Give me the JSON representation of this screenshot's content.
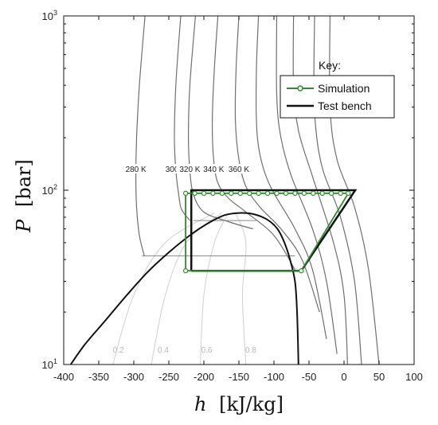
{
  "chart_data": {
    "type": "line",
    "xlabel_var": "h",
    "xlabel_unit": "[kJ/kg]",
    "ylabel_var": "P",
    "ylabel_unit": "[bar]",
    "xlim": [
      -400,
      100
    ],
    "ylim": [
      10,
      1000
    ],
    "yscale": "log",
    "x_ticks": [
      -400,
      -350,
      -300,
      -250,
      -200,
      -150,
      -100,
      -50,
      0,
      50,
      100
    ],
    "y_ticks": [
      {
        "value": 10,
        "base": "10",
        "exp": "1"
      },
      {
        "value": 100,
        "base": "10",
        "exp": "2"
      },
      {
        "value": 1000,
        "base": "10",
        "exp": "3"
      }
    ],
    "grid": false,
    "legend": {
      "title": "Key:",
      "position": "top-right",
      "items": [
        "Simulation",
        "Test bench"
      ]
    },
    "isotherms": [
      {
        "label": "280 K",
        "points": [
          [
            -285,
            42
          ],
          [
            -292,
            55
          ],
          [
            -296,
            80
          ],
          [
            -297,
            120
          ],
          [
            -296,
            200
          ],
          [
            -292,
            400
          ],
          [
            -284,
            1000
          ]
        ]
      },
      {
        "label": "300 K",
        "points": [
          [
            -220,
            67
          ],
          [
            -232,
            78
          ],
          [
            -236,
            95
          ],
          [
            -240,
            130
          ],
          [
            -242,
            200
          ],
          [
            -240,
            400
          ],
          [
            -233,
            1000
          ]
        ]
      },
      {
        "label": "320 K",
        "points": [
          [
            -130,
            60
          ],
          [
            -165,
            66
          ],
          [
            -200,
            75
          ],
          [
            -215,
            95
          ],
          [
            -220,
            130
          ],
          [
            -222,
            200
          ],
          [
            -220,
            400
          ],
          [
            -212,
            1000
          ]
        ]
      },
      {
        "label": "340 K",
        "points": [
          [
            -70,
            35
          ],
          [
            -100,
            55
          ],
          [
            -140,
            75
          ],
          [
            -165,
            90
          ],
          [
            -180,
            110
          ],
          [
            -186,
            150
          ],
          [
            -188,
            250
          ],
          [
            -185,
            500
          ],
          [
            -180,
            1000
          ]
        ]
      },
      {
        "label": "360 K",
        "points": [
          [
            -35,
            20
          ],
          [
            -60,
            40
          ],
          [
            -90,
            60
          ],
          [
            -120,
            80
          ],
          [
            -140,
            105
          ],
          [
            -150,
            150
          ],
          [
            -155,
            250
          ],
          [
            -154,
            500
          ],
          [
            -150,
            1000
          ]
        ]
      },
      {
        "label": "",
        "points": [
          [
            -25,
            14
          ],
          [
            -45,
            35
          ],
          [
            -70,
            60
          ],
          [
            -105,
            105
          ],
          [
            -120,
            160
          ],
          [
            -125,
            250
          ],
          [
            -125,
            500
          ],
          [
            -122,
            1000
          ]
        ]
      },
      {
        "label": "",
        "points": [
          [
            -10,
            11.5
          ],
          [
            -25,
            30
          ],
          [
            -45,
            60
          ],
          [
            -75,
            120
          ],
          [
            -90,
            200
          ],
          [
            -96,
            350
          ],
          [
            -96,
            1000
          ]
        ]
      },
      {
        "label": "",
        "points": [
          [
            5,
            10
          ],
          [
            0,
            25
          ],
          [
            -15,
            50
          ],
          [
            -45,
            120
          ],
          [
            -65,
            220
          ],
          [
            -72,
            400
          ],
          [
            -72,
            1000
          ]
        ]
      },
      {
        "label": "",
        "points": [
          [
            25,
            10
          ],
          [
            15,
            30
          ],
          [
            -5,
            70
          ],
          [
            -30,
            130
          ],
          [
            -40,
            220
          ],
          [
            -43,
            400
          ],
          [
            -42,
            1000
          ]
        ]
      },
      {
        "label": "",
        "points": [
          [
            50,
            10
          ],
          [
            35,
            35
          ],
          [
            15,
            80
          ],
          [
            -10,
            150
          ],
          [
            -20,
            300
          ],
          [
            -20,
            1000
          ]
        ]
      }
    ],
    "saturation_dome": [
      [
        -390,
        10
      ],
      [
        -370,
        13
      ],
      [
        -340,
        18
      ],
      [
        -310,
        25
      ],
      [
        -280,
        34
      ],
      [
        -250,
        44
      ],
      [
        -215,
        57
      ],
      [
        -190,
        66
      ],
      [
        -170,
        72
      ],
      [
        -150,
        74
      ],
      [
        -130,
        73
      ],
      [
        -110,
        68
      ],
      [
        -95,
        60
      ],
      [
        -85,
        50
      ],
      [
        -77,
        40
      ],
      [
        -70,
        30
      ],
      [
        -67,
        20
      ],
      [
        -65,
        10
      ]
    ],
    "quality_lines": [
      {
        "label": "0.2",
        "points": [
          [
            -330,
            10
          ],
          [
            -300,
            25
          ],
          [
            -255,
            50
          ],
          [
            -185,
            74
          ]
        ]
      },
      {
        "label": "0.4",
        "points": [
          [
            -275,
            10
          ],
          [
            -255,
            25
          ],
          [
            -225,
            50
          ],
          [
            -175,
            74
          ]
        ]
      },
      {
        "label": "0.6",
        "points": [
          [
            -205,
            10
          ],
          [
            -200,
            25
          ],
          [
            -185,
            50
          ],
          [
            -165,
            74
          ]
        ]
      },
      {
        "label": "0.8",
        "points": [
          [
            -140,
            10
          ],
          [
            -145,
            25
          ],
          [
            -140,
            50
          ],
          [
            -155,
            74
          ]
        ]
      }
    ],
    "quality_label_positions": [
      [
        -322,
        13
      ],
      [
        -258,
        13
      ],
      [
        -196,
        13
      ],
      [
        -133,
        13
      ]
    ],
    "horizontal_lines": [
      {
        "x": [
          -288,
          -70
        ],
        "y": 42
      },
      {
        "x": [
          -215,
          -125
        ],
        "y": 67
      }
    ],
    "test_bench": [
      [
        -218,
        34.5
      ],
      [
        -218,
        100
      ],
      [
        16,
        100
      ],
      [
        -61,
        34.5
      ],
      [
        -218,
        34.5
      ]
    ],
    "simulation_line": [
      [
        -226,
        34.5
      ],
      [
        -226,
        96
      ],
      [
        6,
        96
      ],
      [
        -61,
        34.5
      ],
      [
        -226,
        34.5
      ]
    ],
    "simulation_markers": [
      [
        -226,
        34.5
      ],
      [
        -226,
        96
      ],
      [
        -213,
        96
      ],
      [
        -200,
        96
      ],
      [
        -187,
        96
      ],
      [
        -174,
        96
      ],
      [
        -161,
        96
      ],
      [
        -148,
        96
      ],
      [
        -135,
        96
      ],
      [
        -122,
        96
      ],
      [
        -109,
        96
      ],
      [
        -96,
        96
      ],
      [
        -83,
        96
      ],
      [
        -70,
        96
      ],
      [
        -57,
        96
      ],
      [
        -44,
        96
      ],
      [
        -31,
        96
      ],
      [
        -18,
        96
      ],
      [
        -5,
        96
      ],
      [
        6,
        96
      ],
      [
        -61,
        34.5
      ]
    ],
    "colors": {
      "simulation": "#2e8b2e",
      "test_bench": "#111111",
      "isotherm": "#6f6f6f",
      "quality": "#cfcfcf",
      "dome": "#111111"
    }
  }
}
